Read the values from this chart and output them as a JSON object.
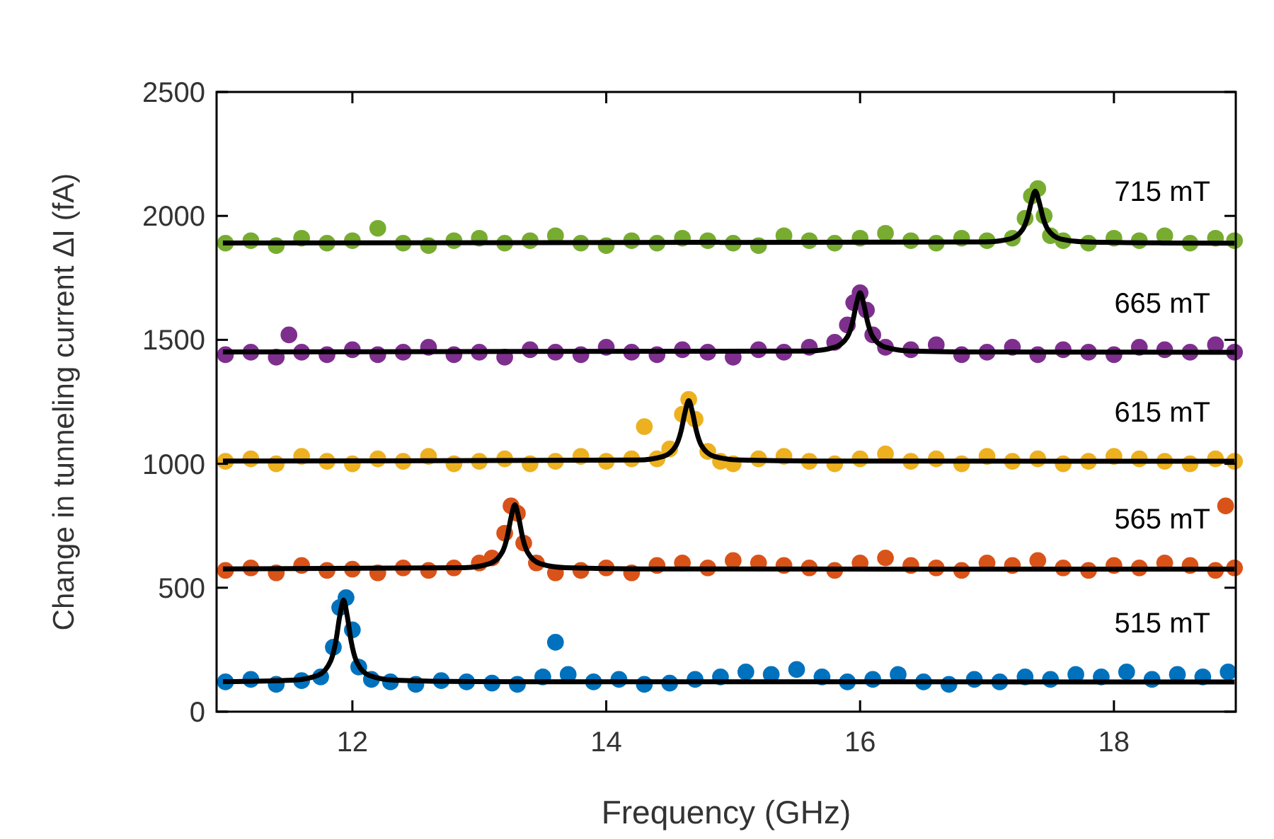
{
  "chart_data": {
    "type": "scatter",
    "xlabel": "Frequency (GHz)",
    "ylabel": "Change in tunneling current ΔI (fA)",
    "xlim": [
      10.93,
      18.96
    ],
    "xticks": [
      12,
      14,
      16,
      18
    ],
    "ylim": [
      0,
      2500
    ],
    "yticks": [
      0,
      500,
      1000,
      1500,
      2000,
      2500
    ],
    "grid": false,
    "marker": "circle",
    "series": [
      {
        "name": "515 mT",
        "color": "#0072bd",
        "x": [
          11.0,
          11.2,
          11.4,
          11.6,
          11.75,
          11.85,
          11.9,
          11.95,
          12.0,
          12.05,
          12.15,
          12.3,
          12.5,
          12.7,
          12.9,
          13.1,
          13.3,
          13.5,
          13.6,
          13.7,
          13.9,
          14.1,
          14.3,
          14.5,
          14.7,
          14.9,
          15.1,
          15.3,
          15.5,
          15.7,
          15.9,
          16.1,
          16.3,
          16.5,
          16.7,
          16.9,
          17.1,
          17.3,
          17.5,
          17.7,
          17.9,
          18.1,
          18.3,
          18.5,
          18.7,
          18.9
        ],
        "values": [
          120,
          130,
          110,
          125,
          140,
          260,
          420,
          460,
          330,
          180,
          130,
          120,
          110,
          125,
          120,
          115,
          110,
          140,
          280,
          150,
          120,
          130,
          110,
          115,
          130,
          140,
          160,
          150,
          170,
          140,
          120,
          130,
          150,
          120,
          110,
          130,
          120,
          140,
          130,
          150,
          140,
          160,
          130,
          150,
          140,
          160
        ]
      },
      {
        "name": "565 mT",
        "color": "#d95319",
        "x": [
          11.0,
          11.2,
          11.4,
          11.6,
          11.8,
          12.0,
          12.2,
          12.4,
          12.6,
          12.8,
          13.0,
          13.1,
          13.2,
          13.25,
          13.3,
          13.35,
          13.45,
          13.6,
          13.8,
          14.0,
          14.2,
          14.4,
          14.6,
          14.8,
          15.0,
          15.2,
          15.4,
          15.6,
          15.8,
          16.0,
          16.2,
          16.4,
          16.6,
          16.8,
          17.0,
          17.2,
          17.4,
          17.6,
          17.8,
          18.0,
          18.2,
          18.4,
          18.6,
          18.8,
          18.88,
          18.95
        ],
        "values": [
          570,
          580,
          560,
          590,
          570,
          575,
          560,
          580,
          570,
          580,
          600,
          620,
          720,
          830,
          800,
          680,
          600,
          560,
          570,
          580,
          560,
          590,
          600,
          580,
          610,
          600,
          590,
          580,
          570,
          600,
          620,
          590,
          580,
          570,
          600,
          590,
          610,
          580,
          570,
          590,
          580,
          600,
          590,
          570,
          830,
          580
        ]
      },
      {
        "name": "615 mT",
        "color": "#edb120",
        "x": [
          11.0,
          11.2,
          11.4,
          11.6,
          11.8,
          12.0,
          12.2,
          12.4,
          12.6,
          12.8,
          13.0,
          13.2,
          13.4,
          13.6,
          13.8,
          14.0,
          14.2,
          14.3,
          14.4,
          14.5,
          14.6,
          14.65,
          14.7,
          14.8,
          14.9,
          15.0,
          15.2,
          15.4,
          15.6,
          15.8,
          16.0,
          16.2,
          16.4,
          16.6,
          16.8,
          17.0,
          17.2,
          17.4,
          17.6,
          17.8,
          18.0,
          18.2,
          18.4,
          18.6,
          18.8,
          18.95
        ],
        "values": [
          1010,
          1020,
          1000,
          1030,
          1010,
          1000,
          1020,
          1010,
          1030,
          1000,
          1010,
          1020,
          1000,
          1010,
          1030,
          1010,
          1020,
          1150,
          1020,
          1060,
          1200,
          1260,
          1180,
          1050,
          1010,
          1000,
          1020,
          1030,
          1010,
          1000,
          1020,
          1040,
          1010,
          1020,
          1000,
          1030,
          1010,
          1020,
          1000,
          1010,
          1030,
          1020,
          1010,
          1000,
          1020,
          1010
        ]
      },
      {
        "name": "665 mT",
        "color": "#7e2f8e",
        "x": [
          11.0,
          11.2,
          11.4,
          11.5,
          11.6,
          11.8,
          12.0,
          12.2,
          12.4,
          12.6,
          12.8,
          13.0,
          13.2,
          13.4,
          13.6,
          13.8,
          14.0,
          14.2,
          14.4,
          14.6,
          14.8,
          15.0,
          15.2,
          15.4,
          15.6,
          15.8,
          15.9,
          15.95,
          16.0,
          16.05,
          16.1,
          16.2,
          16.4,
          16.6,
          16.8,
          17.0,
          17.2,
          17.4,
          17.6,
          17.8,
          18.0,
          18.2,
          18.4,
          18.6,
          18.8,
          18.95
        ],
        "values": [
          1440,
          1450,
          1430,
          1520,
          1450,
          1440,
          1460,
          1440,
          1450,
          1470,
          1440,
          1450,
          1430,
          1460,
          1450,
          1440,
          1470,
          1450,
          1440,
          1460,
          1450,
          1430,
          1460,
          1450,
          1470,
          1490,
          1560,
          1650,
          1690,
          1620,
          1520,
          1470,
          1460,
          1480,
          1440,
          1450,
          1470,
          1440,
          1460,
          1450,
          1440,
          1470,
          1460,
          1450,
          1480,
          1450
        ]
      },
      {
        "name": "715 mT",
        "color": "#77ac30",
        "x": [
          11.0,
          11.2,
          11.4,
          11.6,
          11.8,
          12.0,
          12.2,
          12.4,
          12.6,
          12.8,
          13.0,
          13.2,
          13.4,
          13.6,
          13.8,
          14.0,
          14.2,
          14.4,
          14.6,
          14.8,
          15.0,
          15.2,
          15.4,
          15.6,
          15.8,
          16.0,
          16.2,
          16.4,
          16.6,
          16.8,
          17.0,
          17.2,
          17.3,
          17.35,
          17.4,
          17.45,
          17.5,
          17.6,
          17.8,
          18.0,
          18.2,
          18.4,
          18.6,
          18.8,
          18.95
        ],
        "values": [
          1890,
          1900,
          1880,
          1910,
          1890,
          1900,
          1950,
          1890,
          1880,
          1900,
          1910,
          1890,
          1900,
          1920,
          1890,
          1880,
          1900,
          1890,
          1910,
          1900,
          1890,
          1880,
          1920,
          1900,
          1890,
          1910,
          1930,
          1900,
          1890,
          1910,
          1900,
          1910,
          1990,
          2080,
          2110,
          2000,
          1920,
          1900,
          1890,
          1910,
          1900,
          1920,
          1890,
          1910,
          1900
        ]
      },
      {
        "type": "line",
        "marker": "none",
        "color": "#000000",
        "x": [
          10.98,
          11.53,
          11.73,
          11.83,
          11.87,
          11.9,
          11.93,
          11.96,
          11.99,
          12.03,
          12.13,
          12.33,
          12.93,
          18.95
        ],
        "values": [
          121,
          127,
          147,
          206,
          285,
          384,
          450,
          384,
          285,
          206,
          147,
          127,
          121,
          120
        ]
      },
      {
        "type": "line",
        "marker": "none",
        "color": "#000000",
        "x": [
          10.98,
          12.88,
          13.08,
          13.18,
          13.22,
          13.25,
          13.28,
          13.31,
          13.34,
          13.38,
          13.48,
          13.68,
          14.28,
          18.95
        ],
        "values": [
          576,
          581,
          597,
          643,
          705,
          783,
          835,
          783,
          705,
          643,
          597,
          581,
          576,
          575
        ]
      },
      {
        "type": "line",
        "marker": "none",
        "color": "#000000",
        "x": [
          10.98,
          14.25,
          14.45,
          14.55,
          14.59,
          14.62,
          14.65,
          14.68,
          14.71,
          14.75,
          14.85,
          15.05,
          15.65,
          18.95
        ],
        "values": [
          1011,
          1015,
          1030,
          1074,
          1133,
          1206,
          1255,
          1206,
          1133,
          1074,
          1030,
          1015,
          1011,
          1010
        ]
      },
      {
        "type": "line",
        "marker": "none",
        "color": "#000000",
        "x": [
          10.98,
          15.6,
          15.8,
          15.9,
          15.94,
          15.97,
          16.0,
          16.03,
          16.06,
          16.1,
          16.2,
          16.4,
          17.0,
          18.95
        ],
        "values": [
          1451,
          1455,
          1470,
          1512,
          1570,
          1642,
          1690,
          1642,
          1570,
          1512,
          1470,
          1455,
          1451,
          1450
        ]
      },
      {
        "type": "line",
        "marker": "none",
        "color": "#000000",
        "x": [
          10.98,
          16.98,
          17.18,
          17.28,
          17.32,
          17.35,
          17.38,
          17.41,
          17.44,
          17.48,
          17.58,
          17.78,
          18.38,
          18.95
        ],
        "values": [
          1891,
          1895,
          1907,
          1945,
          1995,
          2058,
          2100,
          2058,
          1995,
          1945,
          1907,
          1895,
          1891,
          1890
        ]
      }
    ]
  }
}
